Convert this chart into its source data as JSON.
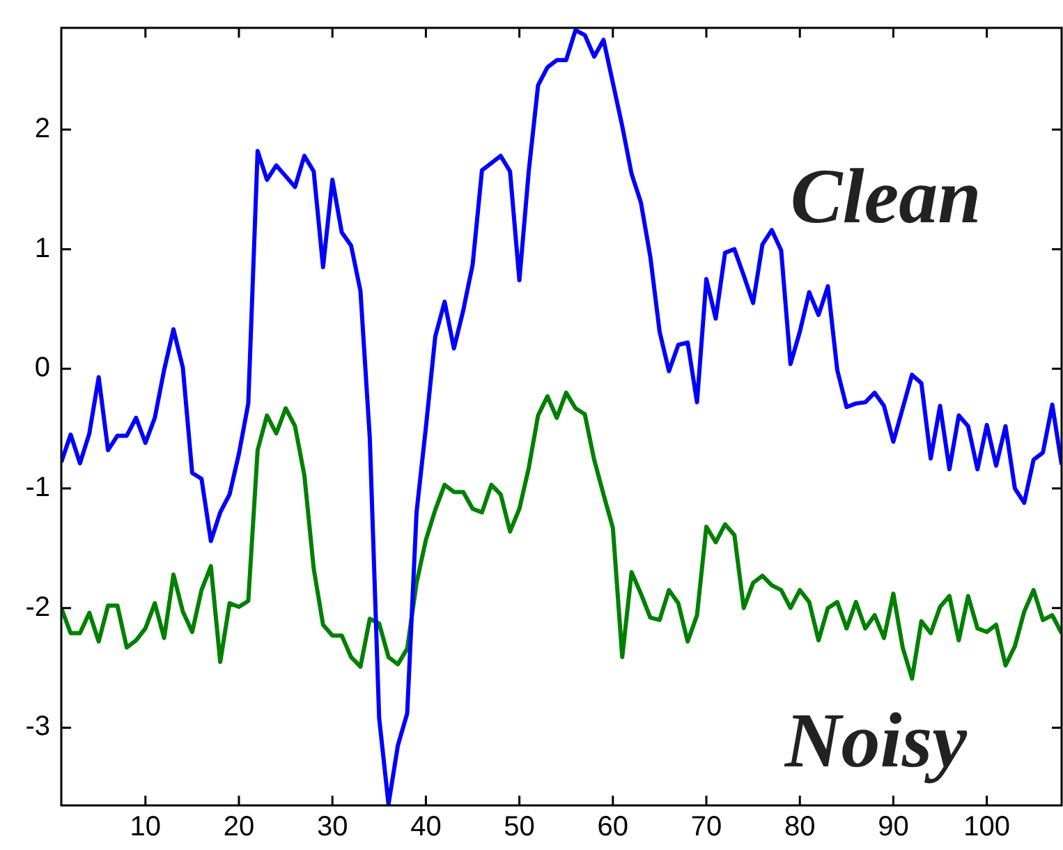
{
  "chart_data": {
    "type": "line",
    "x": [
      1,
      2,
      3,
      4,
      5,
      6,
      7,
      8,
      9,
      10,
      11,
      12,
      13,
      14,
      15,
      16,
      17,
      18,
      19,
      20,
      21,
      22,
      23,
      24,
      25,
      26,
      27,
      28,
      29,
      30,
      31,
      32,
      33,
      34,
      35,
      36,
      37,
      38,
      39,
      40,
      41,
      42,
      43,
      44,
      45,
      46,
      47,
      48,
      49,
      50,
      51,
      52,
      53,
      54,
      55,
      56,
      57,
      58,
      59,
      60,
      61,
      62,
      63,
      64,
      65,
      66,
      67,
      68,
      69,
      70,
      71,
      72,
      73,
      74,
      75,
      76,
      77,
      78,
      79,
      80,
      81,
      82,
      83,
      84,
      85,
      86,
      87,
      88,
      89,
      90,
      91,
      92,
      93,
      94,
      95,
      96,
      97,
      98,
      99,
      100,
      101,
      102,
      103,
      104,
      105,
      106,
      107,
      108
    ],
    "series": [
      {
        "name": "Clean",
        "color": "#0000ff",
        "values": [
          -0.78,
          -0.55,
          -0.79,
          -0.54,
          -0.07,
          -0.68,
          -0.56,
          -0.56,
          -0.41,
          -0.62,
          -0.41,
          -0.01,
          0.33,
          0.01,
          -0.87,
          -0.92,
          -1.44,
          -1.2,
          -1.05,
          -0.71,
          -0.29,
          1.82,
          1.58,
          1.7,
          1.61,
          1.52,
          1.78,
          1.65,
          0.85,
          1.58,
          1.14,
          1.03,
          0.65,
          -0.58,
          -2.92,
          -3.64,
          -3.15,
          -2.88,
          -1.2,
          -0.49,
          0.27,
          0.56,
          0.17,
          0.49,
          0.87,
          1.66,
          1.72,
          1.78,
          1.65,
          0.74,
          1.65,
          2.37,
          2.52,
          2.58,
          2.58,
          2.83,
          2.79,
          2.61,
          2.75,
          2.39,
          2.03,
          1.63,
          1.39,
          0.94,
          0.31,
          -0.02,
          0.2,
          0.22,
          -0.28,
          0.75,
          0.42,
          0.97,
          1.0,
          0.78,
          0.55,
          1.04,
          1.16,
          0.99,
          0.04,
          0.31,
          0.64,
          0.45,
          0.69,
          -0.01,
          -0.32,
          -0.29,
          -0.28,
          -0.2,
          -0.31,
          -0.61,
          -0.33,
          -0.05,
          -0.12,
          -0.75,
          -0.31,
          -0.84,
          -0.39,
          -0.48,
          -0.84,
          -0.47,
          -0.81,
          -0.48,
          -1.0,
          -1.12,
          -0.76,
          -0.7,
          -0.3,
          -0.8
        ]
      },
      {
        "name": "Noisy",
        "color": "#008000",
        "values": [
          -2.0,
          -2.21,
          -2.21,
          -2.04,
          -2.28,
          -1.98,
          -1.98,
          -2.33,
          -2.27,
          -2.17,
          -1.96,
          -2.25,
          -1.72,
          -2.03,
          -2.2,
          -1.85,
          -1.65,
          -2.45,
          -1.96,
          -1.99,
          -1.94,
          -0.68,
          -0.39,
          -0.54,
          -0.33,
          -0.48,
          -0.89,
          -1.67,
          -2.14,
          -2.23,
          -2.23,
          -2.41,
          -2.49,
          -2.09,
          -2.13,
          -2.41,
          -2.47,
          -2.34,
          -1.79,
          -1.43,
          -1.18,
          -0.97,
          -1.03,
          -1.03,
          -1.17,
          -1.2,
          -0.97,
          -1.05,
          -1.36,
          -1.17,
          -0.83,
          -0.39,
          -0.23,
          -0.41,
          -0.2,
          -0.33,
          -0.38,
          -0.76,
          -1.05,
          -1.33,
          -2.41,
          -1.7,
          -1.88,
          -2.08,
          -2.1,
          -1.85,
          -1.96,
          -2.28,
          -2.06,
          -1.32,
          -1.45,
          -1.3,
          -1.39,
          -2.0,
          -1.79,
          -1.73,
          -1.81,
          -1.85,
          -2.0,
          -1.85,
          -1.95,
          -2.27,
          -2.0,
          -1.95,
          -2.17,
          -1.95,
          -2.17,
          -2.06,
          -2.25,
          -1.88,
          -2.33,
          -2.59,
          -2.11,
          -2.21,
          -1.99,
          -1.9,
          -2.27,
          -1.9,
          -2.17,
          -2.2,
          -2.14,
          -2.48,
          -2.32,
          -2.03,
          -1.85,
          -2.1,
          -2.06,
          -2.21
        ]
      }
    ],
    "xlim": [
      1,
      108
    ],
    "xticks": [
      10,
      20,
      30,
      40,
      50,
      60,
      70,
      80,
      90,
      100
    ],
    "ylim": [
      -3.65,
      2.85
    ],
    "yticks": [
      -3,
      -2,
      -1,
      0,
      1,
      2
    ],
    "grid": false,
    "legend": false,
    "marker": "none",
    "line_style": "solid"
  }
}
